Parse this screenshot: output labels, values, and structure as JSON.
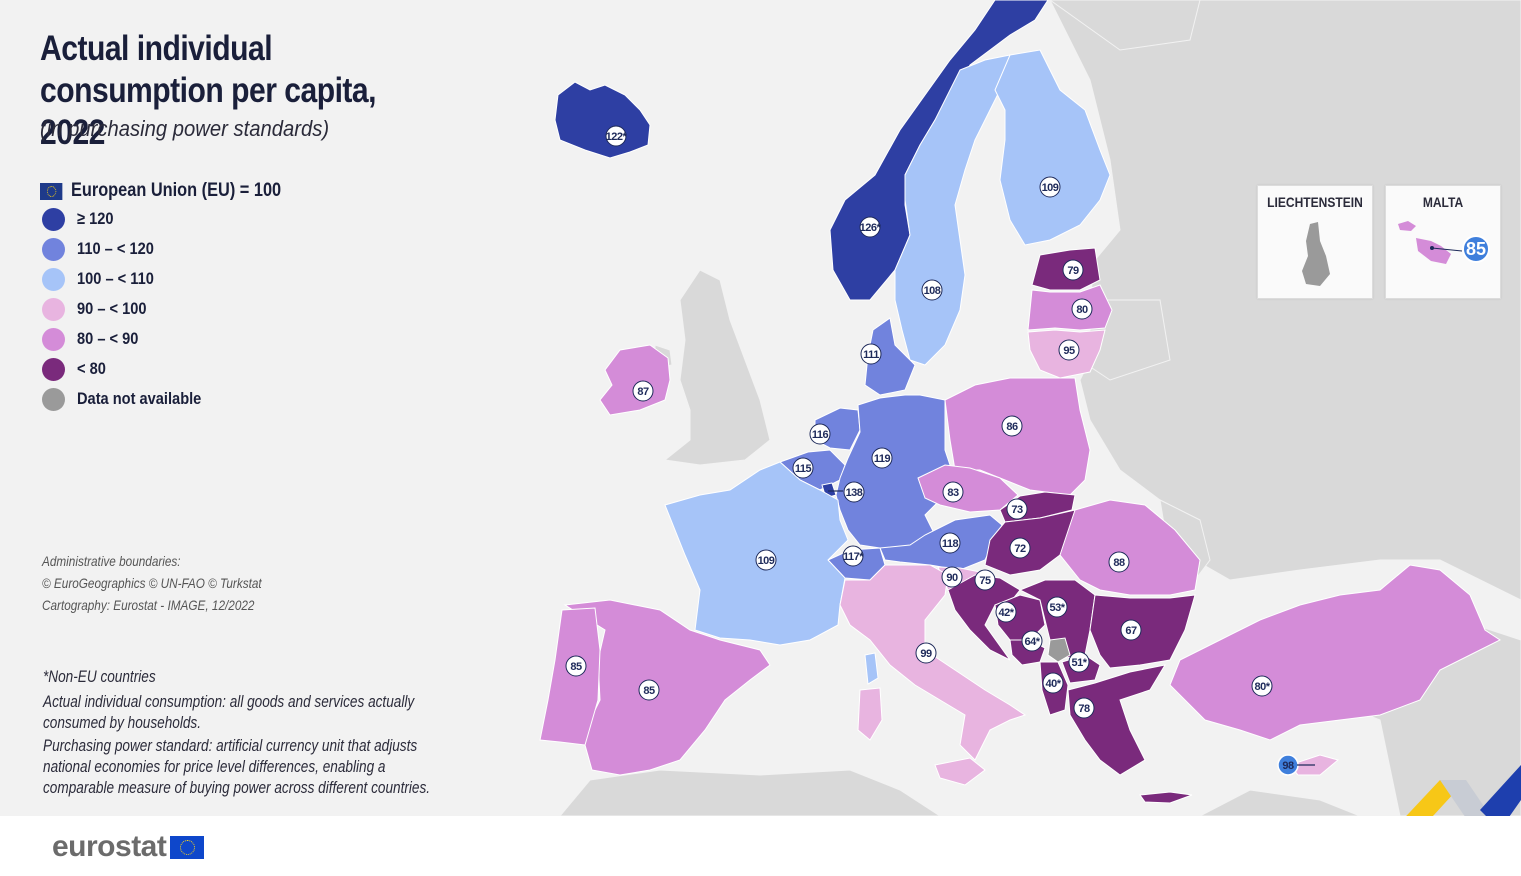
{
  "title": "Actual individual consumption per capita, 2022",
  "subtitle": "(in purchasing power standards)",
  "legend": {
    "header": "European Union (EU) = 100",
    "classes": [
      {
        "label": "≥ 120",
        "color": "#2e3fa3"
      },
      {
        "label": "110 – < 120",
        "color": "#7183dd"
      },
      {
        "label": "100 – < 110",
        "color": "#a6c4f8"
      },
      {
        "label": "90 – < 100",
        "color": "#e8b4e0"
      },
      {
        "label": "80 – < 90",
        "color": "#d48cd8"
      },
      {
        "label": "< 80",
        "color": "#7a2a7c"
      },
      {
        "label": "Data not available",
        "color": "#9a9a9a"
      }
    ]
  },
  "credits": {
    "line1": "Administrative boundaries:",
    "line2": "© EuroGeographics © UN-FAO © Turkstat",
    "line3": "Cartography: Eurostat - IMAGE, 12/2022"
  },
  "notes": {
    "non_eu": "*Non-EU countries",
    "aic": "Actual individual consumption: all goods and services actually consumed by households.",
    "pps": "Purchasing power standard: artificial currency unit that adjusts national economies for price level differences, enabling a comparable measure of buying power across different countries."
  },
  "insets": {
    "liechtenstein": {
      "title": "LIECHTENSTEIN"
    },
    "malta": {
      "title": "MALTA",
      "value": "85"
    }
  },
  "regions": [
    {
      "id": "IS",
      "value": "122*",
      "cls": 0
    },
    {
      "id": "NO",
      "value": "126*",
      "cls": 0
    },
    {
      "id": "SE",
      "value": "108",
      "cls": 2
    },
    {
      "id": "FI",
      "value": "109",
      "cls": 2
    },
    {
      "id": "EE",
      "value": "79",
      "cls": 5
    },
    {
      "id": "LV",
      "value": "80",
      "cls": 4
    },
    {
      "id": "LT",
      "value": "95",
      "cls": 3
    },
    {
      "id": "DK",
      "value": "111",
      "cls": 1
    },
    {
      "id": "IE",
      "value": "87",
      "cls": 4
    },
    {
      "id": "NL",
      "value": "116",
      "cls": 1
    },
    {
      "id": "BE",
      "value": "115",
      "cls": 1
    },
    {
      "id": "LU",
      "value": "138",
      "cls": 0
    },
    {
      "id": "DE",
      "value": "119",
      "cls": 1
    },
    {
      "id": "PL",
      "value": "86",
      "cls": 4
    },
    {
      "id": "CZ",
      "value": "83",
      "cls": 4
    },
    {
      "id": "SK",
      "value": "73",
      "cls": 5
    },
    {
      "id": "AT",
      "value": "118",
      "cls": 1
    },
    {
      "id": "CH",
      "value": "117*",
      "cls": 1
    },
    {
      "id": "FR",
      "value": "109",
      "cls": 2
    },
    {
      "id": "SI",
      "value": "90",
      "cls": 3
    },
    {
      "id": "HU",
      "value": "72",
      "cls": 5
    },
    {
      "id": "RO",
      "value": "88",
      "cls": 4
    },
    {
      "id": "HR",
      "value": "75",
      "cls": 5
    },
    {
      "id": "BA",
      "value": "42*",
      "cls": 5
    },
    {
      "id": "RS",
      "value": "53*",
      "cls": 5
    },
    {
      "id": "ME",
      "value": "64*",
      "cls": 5
    },
    {
      "id": "XK",
      "value": "",
      "cls": 6
    },
    {
      "id": "MK",
      "value": "51*",
      "cls": 5
    },
    {
      "id": "AL",
      "value": "40*",
      "cls": 5
    },
    {
      "id": "BG",
      "value": "67",
      "cls": 5
    },
    {
      "id": "GR",
      "value": "78",
      "cls": 5
    },
    {
      "id": "IT",
      "value": "99",
      "cls": 3
    },
    {
      "id": "ES",
      "value": "85",
      "cls": 4
    },
    {
      "id": "PT",
      "value": "85",
      "cls": 4
    },
    {
      "id": "TR",
      "value": "80*",
      "cls": 4
    },
    {
      "id": "CY",
      "value": "98",
      "cls": 3
    },
    {
      "id": "LI",
      "value": "",
      "cls": 6
    },
    {
      "id": "MT",
      "value": "85",
      "cls": 4
    }
  ],
  "footer": {
    "brand": "eurostat"
  }
}
